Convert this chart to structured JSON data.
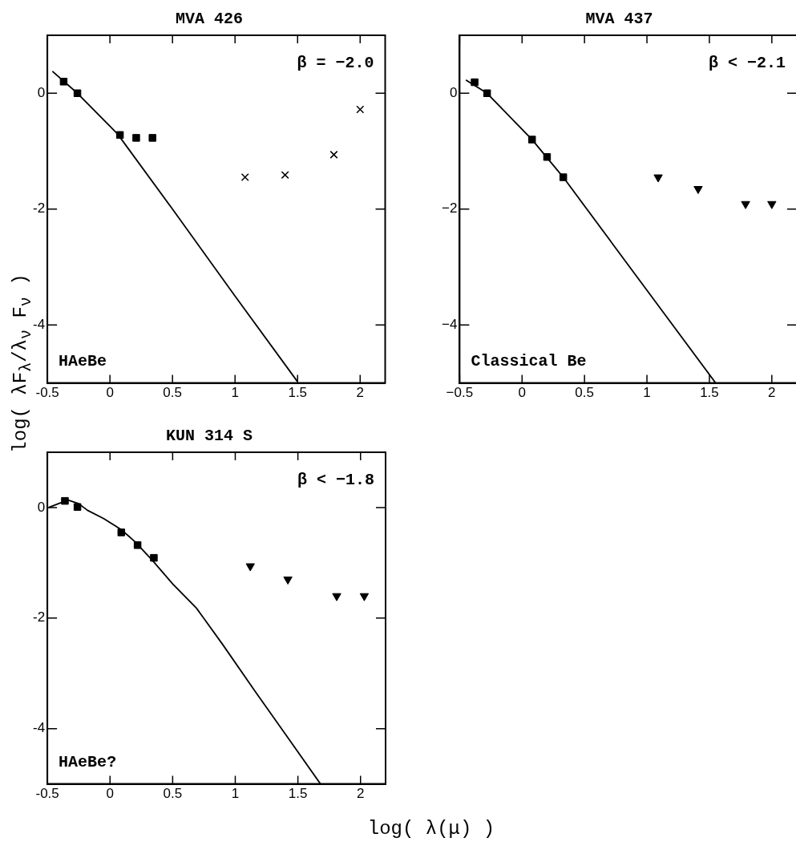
{
  "chart_data": [
    {
      "type": "scatter",
      "title": "MVA 426",
      "ylabel": "log( λF$_{λ}$/λ$_{ν}$ F$_{ν}$ )",
      "annotations": [
        "β = −2.0",
        "HAeBe"
      ],
      "xlim": [
        -0.5,
        2.2
      ],
      "ylim": [
        -5,
        1
      ],
      "xticks": [
        -0.5,
        0,
        0.5,
        1,
        1.5,
        2
      ],
      "yticks": [
        -4,
        -2,
        0
      ],
      "grid": false,
      "legend": false,
      "series": [
        {
          "type": "scatter",
          "marker": "square",
          "color": "#000000",
          "x": [
            -0.37,
            -0.26,
            0.08,
            0.21,
            0.34
          ],
          "values": [
            0.2,
            0,
            -0.72,
            -0.77,
            -0.77
          ]
        },
        {
          "type": "scatter",
          "marker": "cross",
          "color": "#000000",
          "x": [
            1.08,
            1.4,
            1.79,
            2.0
          ],
          "values": [
            -1.45,
            -1.41,
            -1.06,
            -0.28
          ]
        },
        {
          "type": "line",
          "marker": "none",
          "color": "#000000",
          "x": [
            -0.46,
            -0.26,
            0.06,
            0.5,
            1.0,
            1.5
          ],
          "values": [
            0.38,
            0,
            -0.7,
            -2.0,
            -3.5,
            -4.98
          ]
        }
      ]
    },
    {
      "type": "scatter",
      "title": "MVA 437",
      "annotations": [
        "β < −2.1",
        "Classical Be"
      ],
      "xlim": [
        -0.5,
        2.2
      ],
      "ylim": [
        -5,
        1
      ],
      "xticks": [
        {
          "value": -0.5,
          "label": "−0.5"
        },
        0,
        0.5,
        1,
        1.5,
        2
      ],
      "yticks": [
        {
          "value": -4,
          "label": "−4"
        },
        {
          "value": -2,
          "label": "−2"
        },
        0
      ],
      "grid": false,
      "legend": false,
      "series": [
        {
          "type": "scatter",
          "marker": "square",
          "color": "#000000",
          "x": [
            -0.38,
            -0.28,
            0.08,
            0.2,
            0.33
          ],
          "values": [
            0.19,
            0,
            -0.8,
            -1.1,
            -1.45
          ]
        },
        {
          "type": "scatter",
          "marker": "triangle",
          "color": "#000000",
          "x": [
            1.09,
            1.41,
            1.79,
            2.0
          ],
          "values": [
            -1.45,
            -1.65,
            -1.91,
            -1.91
          ]
        },
        {
          "type": "line",
          "marker": "none",
          "color": "#000000",
          "x": [
            -0.45,
            -0.28,
            0.08,
            0.33,
            1.0,
            1.55
          ],
          "values": [
            0.23,
            0,
            -0.8,
            -1.45,
            -3.4,
            -5
          ]
        }
      ]
    },
    {
      "type": "scatter",
      "title": "KUN 314 S",
      "xlabel": "log( λ(μ) )",
      "annotations": [
        "β < −1.8",
        "HAeBe?"
      ],
      "xlim": [
        -0.5,
        2.2
      ],
      "ylim": [
        -5,
        1
      ],
      "xticks": [
        -0.5,
        0,
        0.5,
        1,
        1.5,
        2
      ],
      "yticks": [
        -4,
        -2,
        0
      ],
      "grid": false,
      "legend": false,
      "series": [
        {
          "type": "scatter",
          "marker": "square",
          "color": "#000000",
          "x": [
            -0.36,
            -0.26,
            0.09,
            0.22,
            0.35
          ],
          "values": [
            0.12,
            0.01,
            -0.45,
            -0.68,
            -0.91
          ]
        },
        {
          "type": "scatter",
          "marker": "triangle",
          "color": "#000000",
          "x": [
            1.12,
            1.42,
            1.81,
            2.03
          ],
          "values": [
            -1.06,
            -1.3,
            -1.6,
            -1.6
          ]
        },
        {
          "type": "line",
          "marker": "none",
          "color": "#000000",
          "x": [
            -0.49,
            -0.4,
            -0.33,
            -0.25,
            -0.18,
            -0.05,
            0.09,
            0.2,
            0.34,
            0.5,
            0.69,
            0.9,
            1.16,
            1.4,
            1.68
          ],
          "values": [
            0,
            0.08,
            0.13,
            0.07,
            -0.05,
            -0.2,
            -0.4,
            -0.62,
            -0.96,
            -1.38,
            -1.82,
            -2.48,
            -3.33,
            -4.1,
            -5
          ]
        }
      ]
    }
  ]
}
